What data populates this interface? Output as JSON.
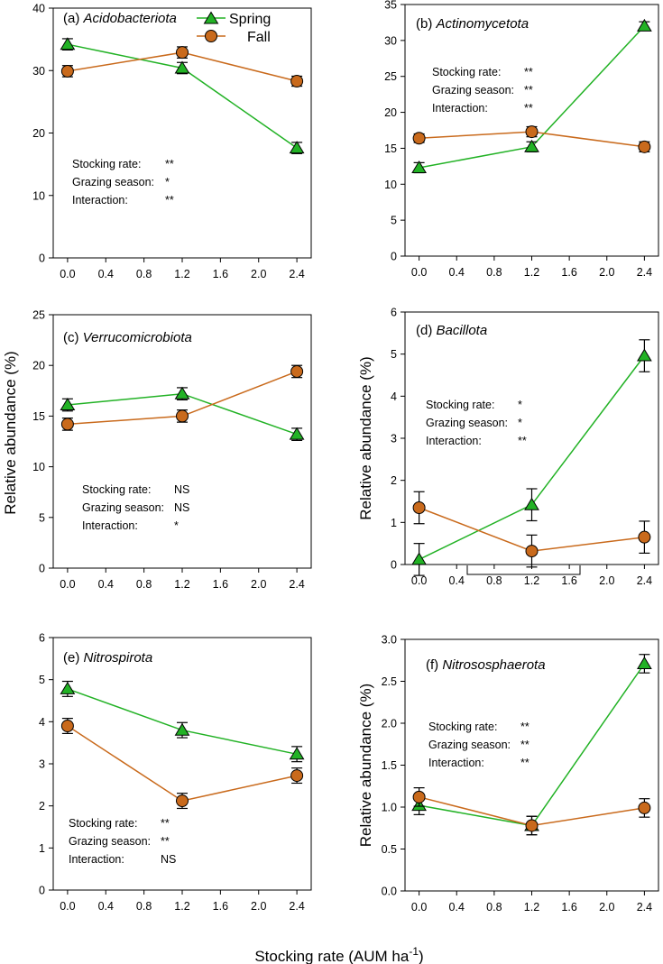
{
  "figure": {
    "ylabel": "Relative abundance (%)",
    "xlabel": "Stocking rate (AUM ha",
    "xlabel_sup": "-1",
    "xlabel_close": ")"
  },
  "legend": {
    "spring": "Spring",
    "fall": "Fall",
    "spring_color": "#22b225",
    "fall_color": "#c96a1c"
  },
  "chart_data": [
    {
      "type": "line",
      "panel": "(a) ",
      "taxon": "Acidobacteriota",
      "x": [
        0.0,
        1.2,
        2.4
      ],
      "xticks": [
        "0.0",
        "0.4",
        "0.8",
        "1.2",
        "1.6",
        "2.0",
        "2.4"
      ],
      "ylim": [
        0,
        40
      ],
      "yticks": [
        "0",
        "10",
        "20",
        "30",
        "40"
      ],
      "series": [
        {
          "name": "Spring",
          "values": [
            34.2,
            30.4,
            17.6
          ],
          "errors": [
            0.9,
            0.9,
            0.9
          ]
        },
        {
          "name": "Fall",
          "values": [
            29.9,
            32.9,
            28.3
          ],
          "errors": [
            0.9,
            0.9,
            0.8
          ]
        }
      ],
      "stats": [
        {
          "label": "Stocking rate:",
          "value": "**"
        },
        {
          "label": "Grazing season:",
          "value": "*"
        },
        {
          "label": "Interaction:",
          "value": "**"
        }
      ],
      "ylabel": ""
    },
    {
      "type": "line",
      "panel": "(b) ",
      "taxon": "Actinomycetota",
      "x": [
        0.0,
        1.2,
        2.4
      ],
      "xticks": [
        "0.0",
        "0.4",
        "0.8",
        "1.2",
        "1.6",
        "2.0",
        "2.4"
      ],
      "ylim": [
        0,
        35
      ],
      "yticks": [
        "0",
        "5",
        "10",
        "15",
        "20",
        "25",
        "30",
        "35"
      ],
      "series": [
        {
          "name": "Spring",
          "values": [
            12.3,
            15.2,
            32.0
          ],
          "errors": [
            0.7,
            0.7,
            0.6
          ]
        },
        {
          "name": "Fall",
          "values": [
            16.4,
            17.3,
            15.2
          ],
          "errors": [
            0.6,
            0.7,
            0.7
          ]
        }
      ],
      "stats": [
        {
          "label": "Stocking rate:",
          "value": "**"
        },
        {
          "label": "Grazing season:",
          "value": "**"
        },
        {
          "label": "Interaction:",
          "value": "**"
        }
      ],
      "ylabel": ""
    },
    {
      "type": "line",
      "panel": "(c) ",
      "taxon": "Verrucomicrobiota",
      "x": [
        0.0,
        1.2,
        2.4
      ],
      "xticks": [
        "0.0",
        "0.4",
        "0.8",
        "1.2",
        "1.6",
        "2.0",
        "2.4"
      ],
      "ylim": [
        0,
        25
      ],
      "yticks": [
        "0",
        "5",
        "10",
        "15",
        "20",
        "25"
      ],
      "series": [
        {
          "name": "Spring",
          "values": [
            16.1,
            17.2,
            13.2
          ],
          "errors": [
            0.6,
            0.6,
            0.6
          ]
        },
        {
          "name": "Fall",
          "values": [
            14.2,
            15.0,
            19.4
          ],
          "errors": [
            0.6,
            0.6,
            0.6
          ]
        }
      ],
      "stats": [
        {
          "label": "Stocking rate:",
          "value": "NS"
        },
        {
          "label": "Grazing season:",
          "value": "NS"
        },
        {
          "label": "Interaction:",
          "value": "*"
        }
      ],
      "ylabel": ""
    },
    {
      "type": "line",
      "panel": "(d) ",
      "taxon": "Bacillota",
      "x": [
        0.0,
        1.2,
        2.4
      ],
      "xticks": [
        "0.0",
        "0.4",
        "0.8",
        "1.2",
        "1.6",
        "2.0",
        "2.4"
      ],
      "ylim": [
        0,
        6
      ],
      "yticks": [
        "0",
        "1",
        "2",
        "3",
        "4",
        "5",
        "6"
      ],
      "series": [
        {
          "name": "Spring",
          "values": [
            0.12,
            1.42,
            4.96
          ],
          "errors": [
            0.38,
            0.38,
            0.38
          ]
        },
        {
          "name": "Fall",
          "values": [
            1.35,
            0.32,
            0.65
          ],
          "errors": [
            0.38,
            0.38,
            0.38
          ]
        }
      ],
      "stats": [
        {
          "label": "Stocking rate:",
          "value": "*"
        },
        {
          "label": "Grazing season:",
          "value": "*"
        },
        {
          "label": "Interaction:",
          "value": "**"
        }
      ],
      "ylabel": "Relative abundance (%)"
    },
    {
      "type": "line",
      "panel": "(e) ",
      "taxon": "Nitrospirota",
      "x": [
        0.0,
        1.2,
        2.4
      ],
      "xticks": [
        "0.0",
        "0.4",
        "0.8",
        "1.2",
        "1.6",
        "2.0",
        "2.4"
      ],
      "ylim": [
        0,
        6
      ],
      "yticks": [
        "0",
        "1",
        "2",
        "3",
        "4",
        "5",
        "6"
      ],
      "series": [
        {
          "name": "Spring",
          "values": [
            4.78,
            3.8,
            3.23
          ],
          "errors": [
            0.18,
            0.18,
            0.18
          ]
        },
        {
          "name": "Fall",
          "values": [
            3.9,
            2.12,
            2.72
          ],
          "errors": [
            0.18,
            0.18,
            0.18
          ]
        }
      ],
      "stats": [
        {
          "label": "Stocking rate:",
          "value": "**"
        },
        {
          "label": "Grazing season:",
          "value": "**"
        },
        {
          "label": "Interaction:",
          "value": "NS"
        }
      ],
      "ylabel": ""
    },
    {
      "type": "line",
      "panel": "(f) ",
      "taxon": "Nitrososphaerota",
      "x": [
        0.0,
        1.2,
        2.4
      ],
      "xticks": [
        "0.0",
        "0.4",
        "0.8",
        "1.2",
        "1.6",
        "2.0",
        "2.4"
      ],
      "ylim": [
        0,
        3.0
      ],
      "yticks": [
        "0.0",
        "0.5",
        "1.0",
        "1.5",
        "2.0",
        "2.5",
        "3.0"
      ],
      "series": [
        {
          "name": "Spring",
          "values": [
            1.02,
            0.78,
            2.71
          ],
          "errors": [
            0.11,
            0.11,
            0.11
          ]
        },
        {
          "name": "Fall",
          "values": [
            1.12,
            0.78,
            0.99
          ],
          "errors": [
            0.11,
            0.11,
            0.11
          ]
        }
      ],
      "stats": [
        {
          "label": "Stocking rate:",
          "value": "**"
        },
        {
          "label": "Grazing season:",
          "value": "**"
        },
        {
          "label": "Interaction:",
          "value": "**"
        }
      ],
      "ylabel": "Relative abundance (%)"
    }
  ]
}
